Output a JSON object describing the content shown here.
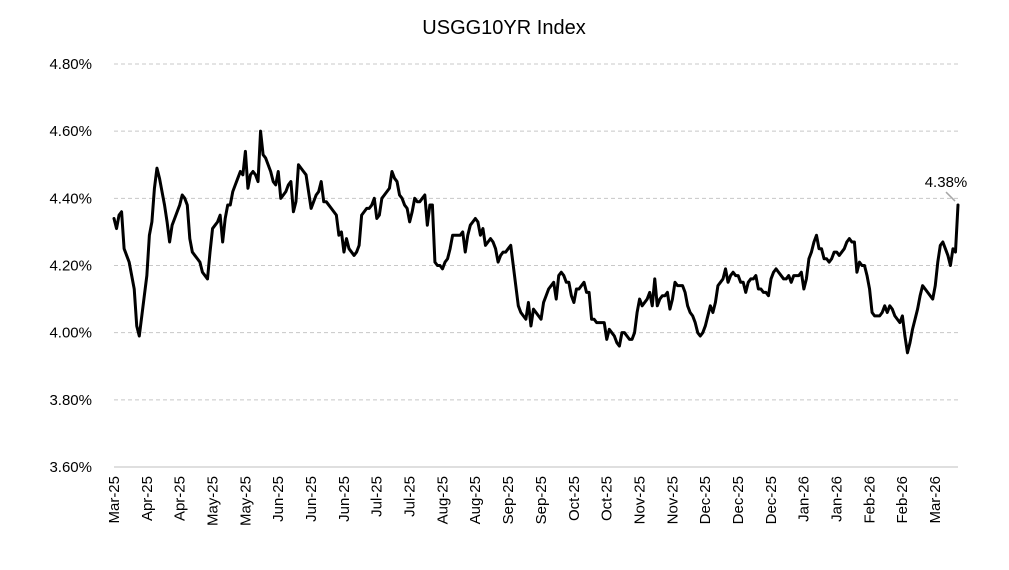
{
  "chart_data": {
    "type": "line",
    "title": "USGG10YR Index",
    "ylim": [
      3.6,
      4.8
    ],
    "yticks": [
      "3.60%",
      "3.80%",
      "4.00%",
      "4.20%",
      "4.40%",
      "4.60%",
      "4.80%"
    ],
    "ytick_values": [
      3.6,
      3.8,
      4.0,
      4.2,
      4.4,
      4.6,
      4.8
    ],
    "xticks": [
      "Mar-25",
      "Apr-25",
      "Apr-25",
      "May-25",
      "May-25",
      "Jun-25",
      "Jun-25",
      "Jun-25",
      "Jul-25",
      "Jul-25",
      "Aug-25",
      "Aug-25",
      "Sep-25",
      "Sep-25",
      "Oct-25",
      "Oct-25",
      "Nov-25",
      "Nov-25",
      "Dec-25",
      "Dec-25",
      "Dec-25",
      "Jan-26",
      "Jan-26",
      "Feb-26",
      "Feb-26",
      "Mar-26"
    ],
    "grid": true,
    "series": [
      {
        "color": "#000000",
        "y": [
          4.34,
          4.31,
          4.35,
          4.36,
          4.25,
          4.23,
          4.21,
          4.17,
          4.13,
          4.02,
          3.99,
          4.05,
          4.11,
          4.17,
          4.29,
          4.33,
          4.43,
          4.49,
          4.46,
          4.42,
          4.38,
          4.33,
          4.27,
          4.32,
          4.34,
          4.36,
          4.38,
          4.41,
          4.4,
          4.38,
          4.28,
          4.24,
          4.23,
          4.22,
          4.21,
          4.18,
          4.17,
          4.16,
          4.24,
          4.31,
          4.32,
          4.33,
          4.35,
          4.27,
          4.34,
          4.38,
          4.38,
          4.42,
          4.44,
          4.46,
          4.48,
          4.47,
          4.54,
          4.43,
          4.47,
          4.48,
          4.47,
          4.45,
          4.6,
          4.53,
          4.52,
          4.5,
          4.48,
          4.45,
          4.44,
          4.48,
          4.4,
          4.41,
          4.42,
          4.44,
          4.45,
          4.36,
          4.39,
          4.5,
          4.49,
          4.48,
          4.47,
          4.42,
          4.37,
          4.39,
          4.41,
          4.42,
          4.45,
          4.39,
          4.39,
          4.38,
          4.37,
          4.36,
          4.35,
          4.29,
          4.3,
          4.24,
          4.28,
          4.25,
          4.24,
          4.23,
          4.24,
          4.26,
          4.35,
          4.36,
          4.37,
          4.37,
          4.38,
          4.4,
          4.34,
          4.35,
          4.4,
          4.41,
          4.42,
          4.43,
          4.48,
          4.46,
          4.45,
          4.41,
          4.4,
          4.38,
          4.37,
          4.33,
          4.36,
          4.4,
          4.39,
          4.39,
          4.4,
          4.41,
          4.32,
          4.38,
          4.38,
          4.21,
          4.2,
          4.2,
          4.19,
          4.21,
          4.22,
          4.25,
          4.29,
          4.29,
          4.29,
          4.29,
          4.3,
          4.24,
          4.29,
          4.32,
          4.33,
          4.34,
          4.33,
          4.29,
          4.31,
          4.26,
          4.27,
          4.28,
          4.27,
          4.25,
          4.21,
          4.23,
          4.24,
          4.24,
          4.25,
          4.26,
          4.2,
          4.14,
          4.08,
          4.06,
          4.05,
          4.04,
          4.09,
          4.02,
          4.07,
          4.06,
          4.05,
          4.04,
          4.09,
          4.11,
          4.13,
          4.14,
          4.15,
          4.1,
          4.17,
          4.18,
          4.17,
          4.15,
          4.15,
          4.11,
          4.09,
          4.13,
          4.13,
          4.14,
          4.15,
          4.12,
          4.12,
          4.04,
          4.04,
          4.03,
          4.03,
          4.03,
          4.03,
          3.98,
          4.01,
          4.0,
          3.99,
          3.97,
          3.96,
          4.0,
          4.0,
          3.99,
          3.98,
          3.98,
          4.0,
          4.06,
          4.1,
          4.08,
          4.09,
          4.1,
          4.12,
          4.08,
          4.16,
          4.08,
          4.1,
          4.11,
          4.11,
          4.12,
          4.07,
          4.1,
          4.15,
          4.14,
          4.14,
          4.14,
          4.12,
          4.08,
          4.06,
          4.05,
          4.03,
          4.0,
          3.99,
          4.0,
          4.02,
          4.05,
          4.08,
          4.06,
          4.09,
          4.14,
          4.15,
          4.16,
          4.19,
          4.15,
          4.17,
          4.18,
          4.17,
          4.17,
          4.15,
          4.15,
          4.12,
          4.15,
          4.16,
          4.16,
          4.17,
          4.13,
          4.13,
          4.12,
          4.12,
          4.11,
          4.16,
          4.18,
          4.19,
          4.18,
          4.17,
          4.16,
          4.16,
          4.17,
          4.15,
          4.17,
          4.17,
          4.17,
          4.18,
          4.13,
          4.16,
          4.22,
          4.24,
          4.27,
          4.29,
          4.25,
          4.25,
          4.22,
          4.22,
          4.21,
          4.22,
          4.24,
          4.24,
          4.23,
          4.24,
          4.25,
          4.27,
          4.28,
          4.27,
          4.27,
          4.18,
          4.21,
          4.2,
          4.2,
          4.17,
          4.13,
          4.06,
          4.05,
          4.05,
          4.05,
          4.06,
          4.08,
          4.06,
          4.08,
          4.07,
          4.05,
          4.04,
          4.03,
          4.05,
          3.99,
          3.94,
          3.97,
          4.01,
          4.04,
          4.07,
          4.11,
          4.14,
          4.13,
          4.12,
          4.11,
          4.1,
          4.14,
          4.21,
          4.26,
          4.27,
          4.25,
          4.23,
          4.2,
          4.25,
          4.24,
          4.38
        ]
      }
    ],
    "annotations": [
      {
        "text": "4.38%",
        "target": "last-point"
      }
    ]
  }
}
